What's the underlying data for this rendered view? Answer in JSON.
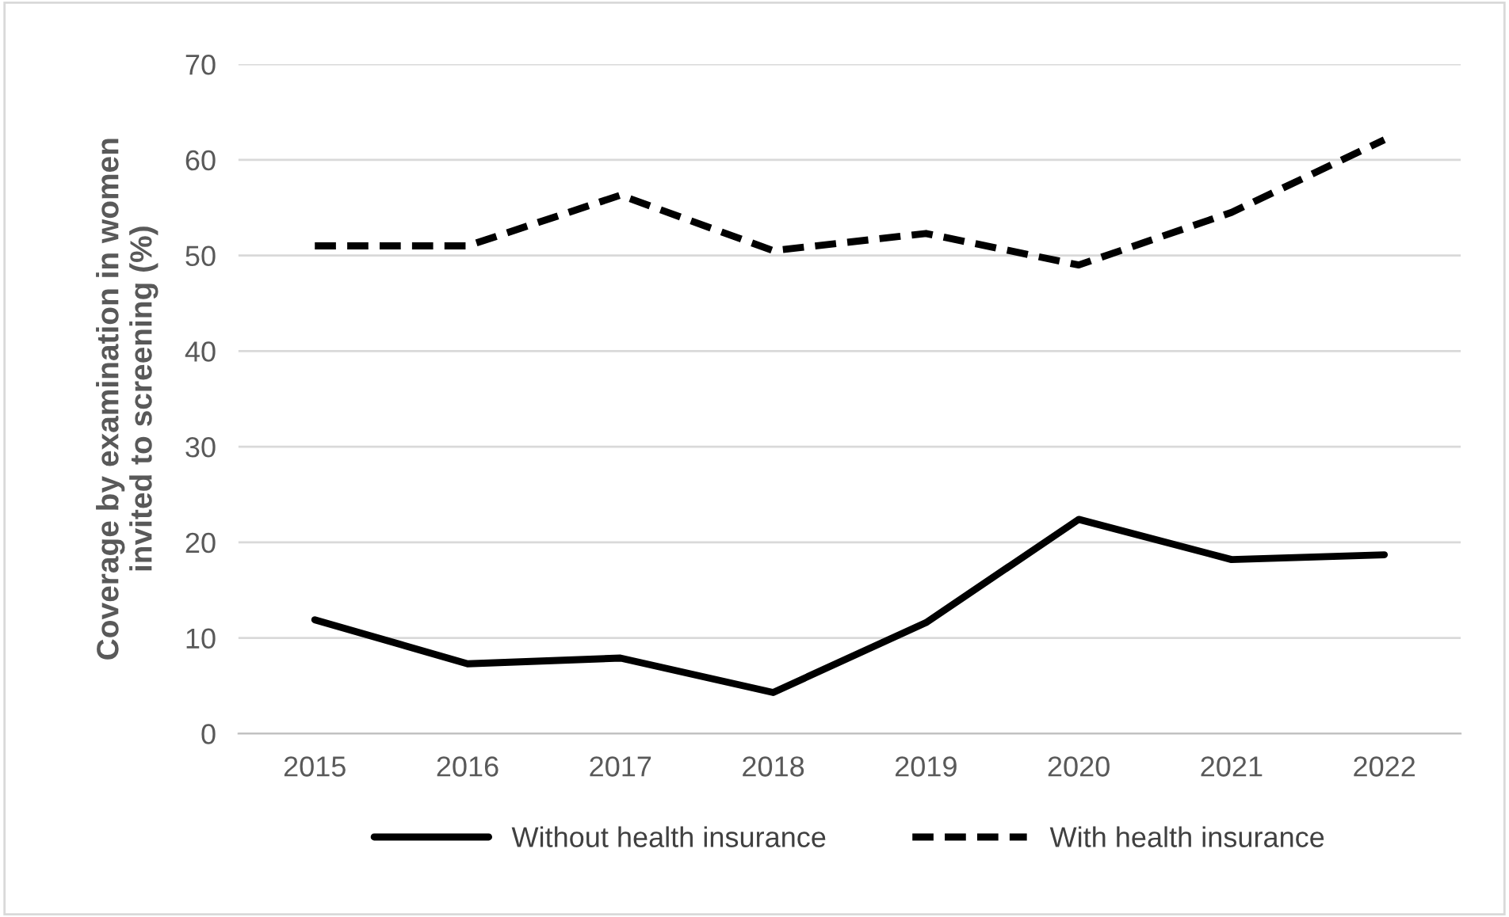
{
  "chart_data": {
    "type": "line",
    "ylabel": "Coverage by examination in women\ninvited to screening (%)",
    "categories": [
      "2015",
      "2016",
      "2017",
      "2018",
      "2019",
      "2020",
      "2021",
      "2022"
    ],
    "series": [
      {
        "name": "Without health insurance",
        "color": "#000000",
        "line_style": "solid",
        "values": [
          11.9,
          7.3,
          7.9,
          4.3,
          11.6,
          22.4,
          18.2,
          18.7
        ]
      },
      {
        "name": "With health insurance",
        "color": "#000000",
        "line_style": "dashed",
        "values": [
          51.0,
          51.0,
          56.3,
          50.5,
          52.3,
          49.0,
          54.5,
          62.1
        ]
      }
    ],
    "ylim": [
      0,
      70
    ],
    "yticks": [
      0,
      10,
      20,
      30,
      40,
      50,
      60,
      70
    ],
    "grid": "y",
    "legend": "bottom",
    "marker": "none"
  }
}
